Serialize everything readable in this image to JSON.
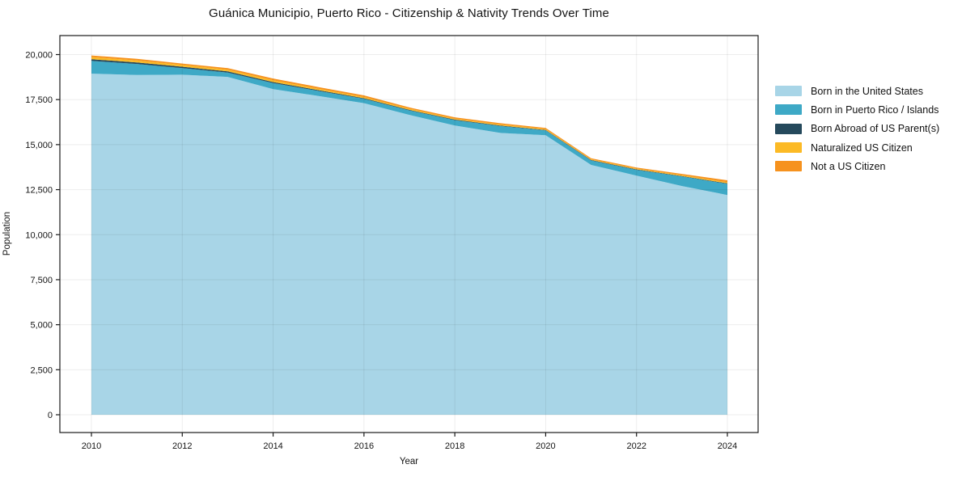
{
  "chart_data": {
    "type": "area",
    "stacked": true,
    "title": "Guánica Municipio, Puerto Rico - Citizenship & Nativity Trends Over Time",
    "xlabel": "Year",
    "ylabel": "Population",
    "x": [
      2010,
      2011,
      2012,
      2013,
      2014,
      2015,
      2016,
      2017,
      2018,
      2019,
      2020,
      2021,
      2022,
      2023,
      2024
    ],
    "xticks": [
      2010,
      2012,
      2014,
      2016,
      2018,
      2020,
      2022,
      2024
    ],
    "yticks": [
      0,
      2500,
      5000,
      7500,
      10000,
      12500,
      15000,
      17500,
      20000
    ],
    "ytick_labels": [
      "0",
      "2,500",
      "5,000",
      "7,500",
      "10,000",
      "12,500",
      "15,000",
      "17,500",
      "20,000"
    ],
    "ylim": [
      0,
      21050
    ],
    "xlim": [
      2009.3,
      2024.68
    ],
    "grid": true,
    "legend_position": "right",
    "series": [
      {
        "name": "Born in the United States",
        "color": "#a8d5e7",
        "values": [
          18940,
          18870,
          18880,
          18760,
          18080,
          17700,
          17300,
          16650,
          16060,
          15650,
          15520,
          13870,
          13280,
          12700,
          12200
        ]
      },
      {
        "name": "Born in Puerto Rico / Islands",
        "color": "#3ea9c6",
        "values": [
          710,
          610,
          370,
          240,
          340,
          280,
          240,
          250,
          300,
          380,
          270,
          250,
          320,
          530,
          620
        ]
      },
      {
        "name": "Born Abroad of US Parent(s)",
        "color": "#25495c",
        "values": [
          90,
          85,
          75,
          65,
          55,
          45,
          35,
          30,
          30,
          30,
          25,
          25,
          25,
          25,
          30
        ]
      },
      {
        "name": "Naturalized US Citizen",
        "color": "#fcba25",
        "values": [
          120,
          110,
          100,
          100,
          100,
          80,
          70,
          60,
          55,
          55,
          50,
          40,
          45,
          50,
          60
        ]
      },
      {
        "name": "Not a US Citizen",
        "color": "#f6921e",
        "values": [
          90,
          85,
          75,
          85,
          95,
          90,
          90,
          75,
          70,
          75,
          65,
          55,
          60,
          70,
          110
        ]
      }
    ],
    "totals": [
      19950,
      19760,
      19500,
      19250,
      18670,
      18195,
      17735,
      17065,
      16515,
      16190,
      15930,
      14240,
      13730,
      13375,
      13020
    ]
  }
}
